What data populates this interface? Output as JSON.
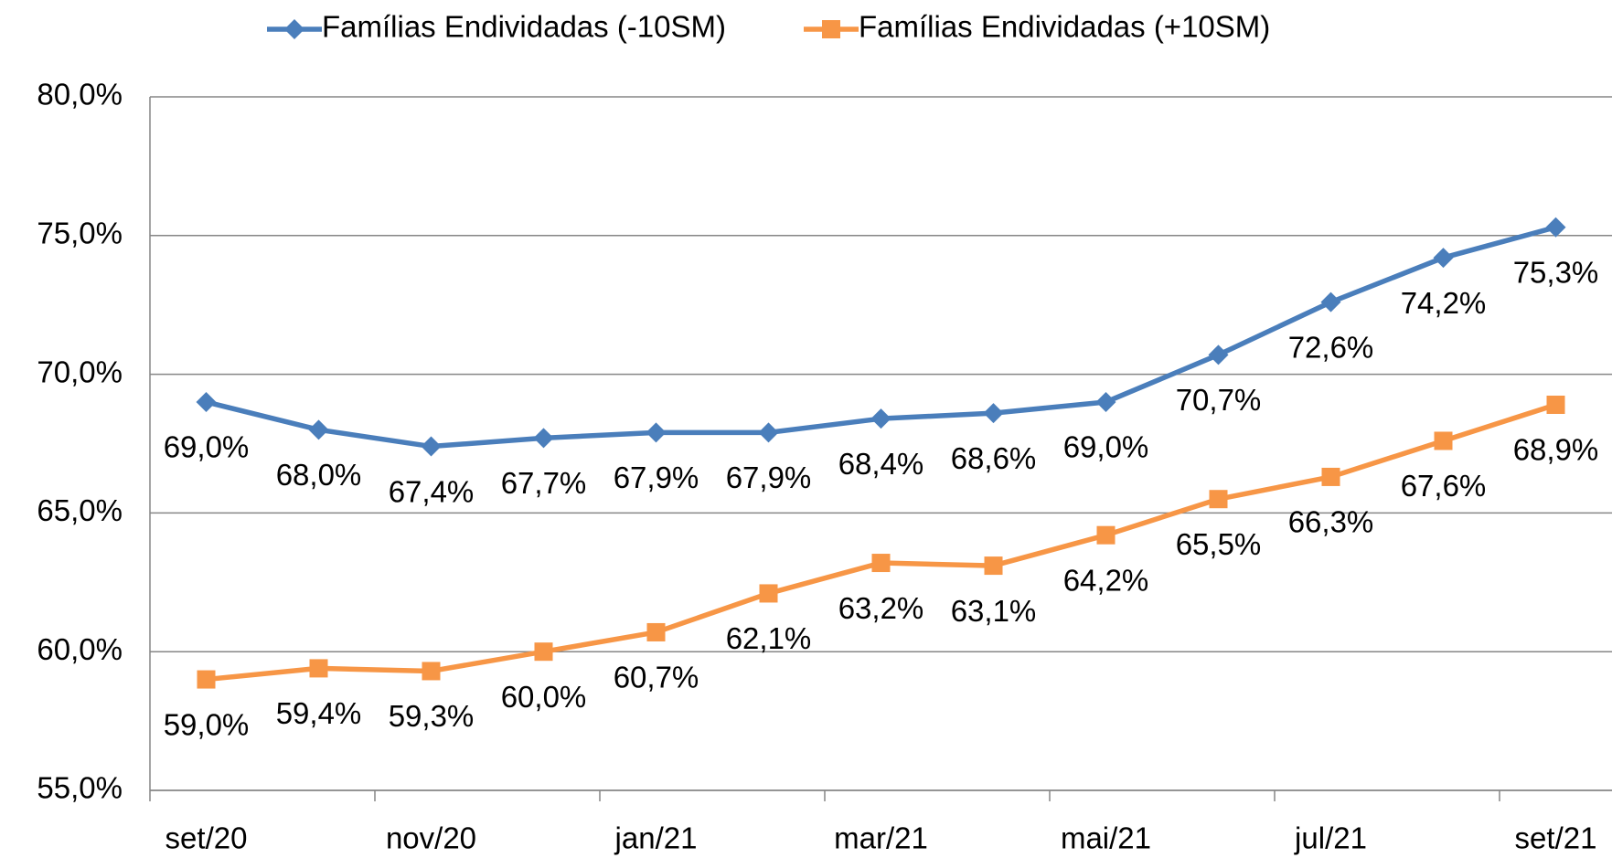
{
  "chart_data": {
    "type": "line",
    "categories": [
      "set/20",
      null,
      "nov/20",
      null,
      "jan/21",
      null,
      "mar/21",
      null,
      "mai/21",
      null,
      "jul/21",
      null,
      "set/21"
    ],
    "series": [
      {
        "name": "Famílias Endividadas (-10SM)",
        "color": "#4a7ebb",
        "marker": "diamond",
        "values": [
          69.0,
          68.0,
          67.4,
          67.7,
          67.9,
          67.9,
          68.4,
          68.6,
          69.0,
          70.7,
          72.6,
          74.2,
          75.3
        ],
        "value_labels": [
          "69,0%",
          "68,0%",
          "67,4%",
          "67,7%",
          "67,9%",
          "67,9%",
          "68,4%",
          "68,6%",
          "69,0%",
          "70,7%",
          "72,6%",
          "74,2%",
          "75,3%"
        ]
      },
      {
        "name": "Famílias Endividadas (+10SM)",
        "color": "#f79646",
        "marker": "square",
        "values": [
          59.0,
          59.4,
          59.3,
          60.0,
          60.7,
          62.1,
          63.2,
          63.1,
          64.2,
          65.5,
          66.3,
          67.6,
          68.9
        ],
        "value_labels": [
          "59,0%",
          "59,4%",
          "59,3%",
          "60,0%",
          "60,7%",
          "62,1%",
          "63,2%",
          "63,1%",
          "64,2%",
          "65,5%",
          "66,3%",
          "67,6%",
          "68,9%"
        ]
      }
    ],
    "ylim": [
      55,
      80
    ],
    "yticks": [
      {
        "value": 55,
        "label": "55,0%"
      },
      {
        "value": 60,
        "label": "60,0%"
      },
      {
        "value": 65,
        "label": "65,0%"
      },
      {
        "value": 70,
        "label": "70,0%"
      },
      {
        "value": 75,
        "label": "75,0%"
      },
      {
        "value": 80,
        "label": "80,0%"
      }
    ],
    "grid": true,
    "legend": "top"
  }
}
